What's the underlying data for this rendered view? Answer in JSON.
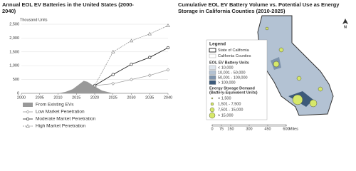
{
  "chart_data": {
    "type": "line",
    "title": "Annual EOL EV Batteries in the United States (2000-2040)",
    "y_label": "Thousand Units",
    "xlim": [
      2000,
      2040
    ],
    "xticks": [
      2000,
      2005,
      2010,
      2015,
      2020,
      2025,
      2030,
      2035,
      2040
    ],
    "ylim": [
      0,
      2500
    ],
    "yticks": [
      0,
      500,
      {
        "value": 1000,
        "label": "1,000"
      },
      {
        "value": 1500,
        "label": "1,500"
      },
      {
        "value": 2000,
        "label": "2,000"
      },
      {
        "value": 2500,
        "label": "2,500"
      }
    ],
    "grid": true,
    "series": [
      {
        "name": "From Existing EVs",
        "style": "area",
        "color": "#999999",
        "x": [
          2010,
          2012,
          2014,
          2016,
          2017,
          2018,
          2020,
          2022,
          2025
        ],
        "values": [
          0,
          50,
          150,
          350,
          450,
          420,
          250,
          100,
          0
        ]
      },
      {
        "name": "Low Market Penetration",
        "style": "line",
        "marker": "diamond",
        "color": "#999999",
        "x": [
          2020,
          2025,
          2030,
          2035,
          2040
        ],
        "values": [
          280,
          350,
          500,
          650,
          850
        ]
      },
      {
        "name": "Moderate Market Penetration",
        "style": "line",
        "marker": "circle",
        "color": "#222222",
        "x": [
          2020,
          2025,
          2030,
          2035,
          2040
        ],
        "values": [
          280,
          680,
          1050,
          1300,
          1650
        ]
      },
      {
        "name": "High Market Penetration",
        "style": "dash",
        "marker": "triangle",
        "color": "#888888",
        "x": [
          2020,
          2025,
          2030,
          2035,
          2040
        ],
        "values": [
          280,
          1500,
          1900,
          2150,
          2450
        ]
      }
    ]
  },
  "map": {
    "title": "Cumulative EOL EV Battery Volume vs. Potential Use as Energy Storage in California Counties (2010-2025)",
    "legend_title": "Legend",
    "state": "State of California",
    "counties": "California Counties",
    "units_title": "EOL EV Battery Units",
    "units": [
      {
        "label": "< 10,000",
        "color": "#dfe6ee"
      },
      {
        "label": "10,001 - 50,000",
        "color": "#b3c2d3"
      },
      {
        "label": "50,001 - 100,000",
        "color": "#7d93ac"
      },
      {
        "label": "> 100,000",
        "color": "#3d5a7a"
      }
    ],
    "demand_title": [
      "Energy Storage Demand",
      "(Battery-Equivalent Units)"
    ],
    "demand": [
      "< 1,500",
      "1,501 - 7,500",
      "7,501 - 15,000",
      "> 15,000"
    ],
    "scale": [
      "0",
      "75",
      "150",
      "300",
      "450",
      "600"
    ],
    "scale_unit": "Miles",
    "north": "N"
  }
}
